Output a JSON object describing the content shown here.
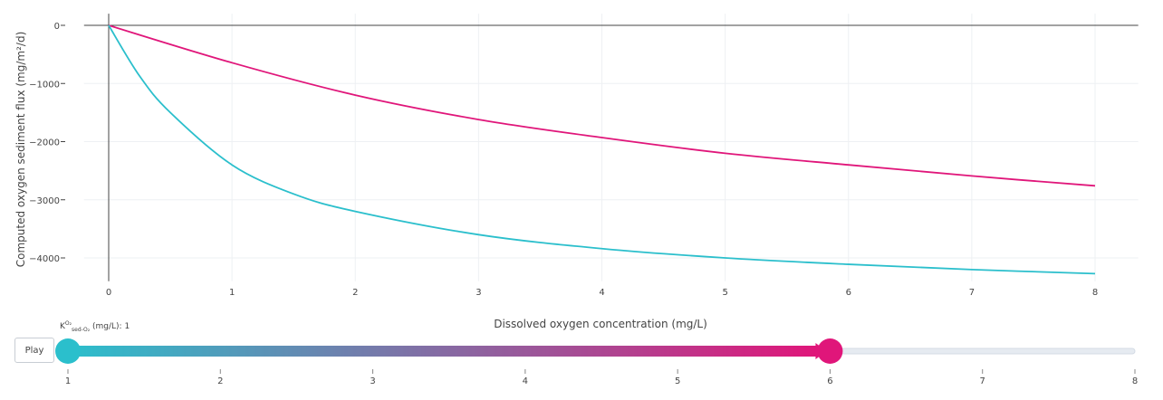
{
  "chart_data": {
    "type": "line",
    "xlabel": "Dissolved oxygen concentration (mg/L)",
    "ylabel": "Computed oxygen sediment flux (mg/m²/d)",
    "xlim": [
      -0.2,
      8.35
    ],
    "ylim": [
      -4400,
      200
    ],
    "x_ticks": [
      0,
      1,
      2,
      3,
      4,
      5,
      6,
      7,
      8
    ],
    "y_ticks": [
      0,
      -1000,
      -2000,
      -3000,
      -4000
    ],
    "x_tick_labels": [
      "0",
      "1",
      "2",
      "3",
      "4",
      "5",
      "6",
      "7",
      "8"
    ],
    "y_tick_labels": [
      "0",
      "−1000",
      "−2000",
      "−3000",
      "−4000"
    ],
    "grid": true,
    "series": [
      {
        "color": "#e0167a",
        "x": [
          0,
          1,
          2,
          3,
          4,
          5,
          6,
          7,
          8
        ],
        "values": [
          0,
          -643,
          -1200,
          -1620,
          -1930,
          -2200,
          -2400,
          -2590,
          -2760
        ]
      },
      {
        "color": "#2bbfcc",
        "x": [
          0,
          0.25,
          0.5,
          1,
          1.5,
          2,
          3,
          4,
          5,
          6,
          7,
          8
        ],
        "values": [
          0,
          -870,
          -1500,
          -2400,
          -2900,
          -3200,
          -3600,
          -3840,
          -4000,
          -4110,
          -4200,
          -4270
        ]
      }
    ]
  },
  "slider": {
    "label_prefix": "K",
    "label_sup": "O₂",
    "label_sub": "sed-O₂",
    "label_suffix": " (mg/L): 1",
    "min": 1,
    "max": 8,
    "start_value": 1,
    "end_value": 6,
    "tick_labels": [
      "1",
      "2",
      "3",
      "4",
      "5",
      "6",
      "7",
      "8"
    ],
    "start_color": "#2bbfcc",
    "end_color": "#e0167a",
    "rail_color": "#e6ebf1"
  },
  "play_label": "Play"
}
